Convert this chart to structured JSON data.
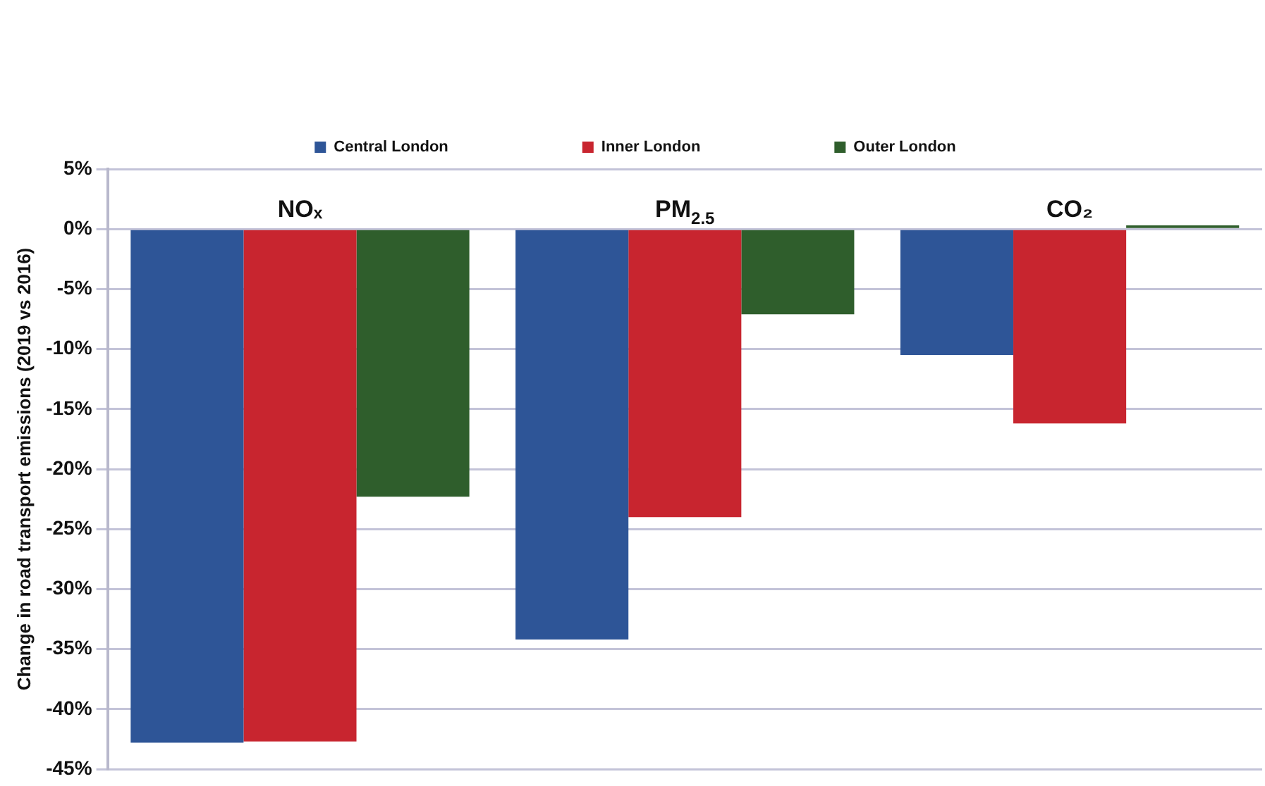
{
  "chart_data": {
    "type": "bar",
    "categories": [
      "NOₓ",
      "PM$_{2.5}$",
      "CO₂"
    ],
    "ylabel": "Change in road transport emissions (2019 vs 2016)",
    "series": [
      {
        "name": "Central London",
        "color": "#2e5597",
        "values": [
          -42.8,
          -34.2,
          -10.5
        ]
      },
      {
        "name": "Inner London",
        "color": "#c8252f",
        "values": [
          -42.7,
          -24,
          -16.2
        ]
      },
      {
        "name": "Outer London",
        "color": "#2f5e2c",
        "values": [
          -22.3,
          -7.1,
          0.3
        ]
      }
    ],
    "ylim": [
      -45,
      5
    ],
    "yticks": [
      {
        "value": -45,
        "label": "-45%"
      },
      {
        "value": -40,
        "label": "-40%"
      },
      {
        "value": -35,
        "label": "-35%"
      },
      {
        "value": -30,
        "label": "-30%"
      },
      {
        "value": -25,
        "label": "-25%"
      },
      {
        "value": -20,
        "label": "-20%"
      },
      {
        "value": -15,
        "label": "-15%"
      },
      {
        "value": -10,
        "label": "-10%"
      },
      {
        "value": -5,
        "label": "-5%"
      },
      {
        "value": 0,
        "label": "0%"
      },
      {
        "value": 5,
        "label": "5%"
      }
    ],
    "grid": "y",
    "legend": "top"
  }
}
